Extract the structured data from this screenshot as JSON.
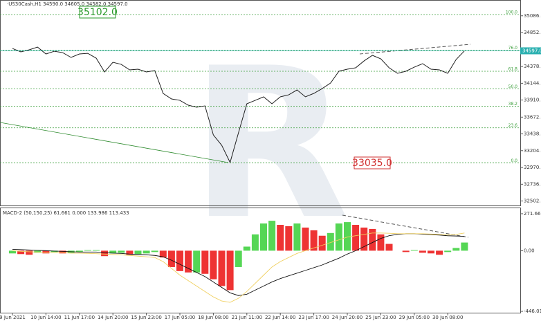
{
  "chart_data": [
    {
      "type": "line",
      "title": "·US30Cash,H1  34590.0 34605.0 34582.0 34597.0",
      "color": "#1f1f1f",
      "values": [
        34630,
        34582,
        34611,
        34649,
        34553,
        34591,
        34572,
        34505,
        34553,
        34562,
        34495,
        34302,
        34437,
        34408,
        34331,
        34341,
        34302,
        34321,
        34003,
        33926,
        33906,
        33839,
        33810,
        33829,
        33424,
        33279,
        33040,
        33453,
        33858,
        33906,
        33955,
        33858,
        33955,
        33983,
        34051,
        33955,
        34003,
        34070,
        34148,
        34312,
        34341,
        34360,
        34456,
        34534,
        34485,
        34360,
        34283,
        34312,
        34369,
        34418,
        34341,
        34331,
        34283,
        34476,
        34597
      ],
      "ylim": [
        32430,
        35306
      ],
      "yticks": [
        {
          "value": 35086,
          "label": "35086.0"
        },
        {
          "value": 34852,
          "label": "34852.0"
        },
        {
          "value": 34378.6,
          "label": "34378.6"
        },
        {
          "value": 34144.5,
          "label": "34144.5"
        },
        {
          "value": 33910.5,
          "label": "33910.5"
        },
        {
          "value": 33672,
          "label": "33672.0"
        },
        {
          "value": 33438,
          "label": "33438.0"
        },
        {
          "value": 33204,
          "label": "33204.0"
        },
        {
          "value": 32970,
          "label": "32970.0"
        },
        {
          "value": 32736,
          "label": "32736.0"
        },
        {
          "value": 32502,
          "label": "32502.0"
        }
      ],
      "last_price": {
        "value": 34597,
        "label": "34597.0"
      },
      "fib_color": "#3a9e3a",
      "fib_levels": [
        {
          "level": "100.0",
          "price": 35102
        },
        {
          "level": "76.0",
          "price": 34606
        },
        {
          "level": "61.8",
          "price": 34312
        },
        {
          "level": "50.0",
          "price": 34068
        },
        {
          "level": "38.2",
          "price": 33825
        },
        {
          "level": "23.6",
          "price": 33523
        },
        {
          "level": "0.0",
          "price": 33035
        }
      ],
      "annotations": [
        {
          "text": "35102.0",
          "color": "#2a9a2a"
        },
        {
          "text": "33035.0",
          "color": "#d03030"
        }
      ]
    },
    {
      "type": "bar",
      "title": "MACD-2 (50,150,25) 61.661 0.000 133.986 113.433",
      "up_color": "#55d655",
      "down_color": "#ee3333",
      "categories": [
        "9 Jun 2021",
        null,
        null,
        null,
        "10 Jun 14:00",
        null,
        null,
        null,
        "11 Jun 17:00",
        null,
        null,
        null,
        "14 Jun 20:00",
        null,
        null,
        null,
        "15 Jun 23:00",
        null,
        null,
        null,
        "17 Jun 05:00",
        null,
        null,
        null,
        "18 Jun 08:00",
        null,
        null,
        null,
        "21 Jun 11:00",
        null,
        null,
        null,
        "22 Jun 14:00",
        null,
        null,
        null,
        "23 Jun 17:00",
        null,
        null,
        null,
        "24 Jun 20:00",
        null,
        null,
        null,
        "25 Jun 23:00",
        null,
        null,
        null,
        "29 Jun 05:00",
        null,
        null,
        null,
        "30 Jun 08:00",
        null,
        null
      ],
      "values": [
        -20,
        -25,
        -30,
        -15,
        -20,
        -10,
        -20,
        -15,
        -10,
        5,
        5,
        -40,
        -20,
        -15,
        -30,
        -25,
        -20,
        -10,
        -50,
        -120,
        -150,
        -160,
        -160,
        -170,
        -210,
        -260,
        -290,
        -120,
        30,
        120,
        200,
        220,
        190,
        180,
        200,
        170,
        150,
        110,
        130,
        200,
        210,
        190,
        170,
        160,
        120,
        50,
        0,
        -10,
        5,
        -15,
        -20,
        -30,
        -10,
        20,
        60
      ],
      "series": [
        {
          "color": "#111111",
          "values": [
            10,
            8,
            5,
            3,
            0,
            -3,
            -5,
            -8,
            -10,
            -10,
            -10,
            -15,
            -18,
            -20,
            -25,
            -28,
            -30,
            -35,
            -45,
            -70,
            -100,
            -130,
            -160,
            -190,
            -230,
            -270,
            -310,
            -330,
            -320,
            -290,
            -260,
            -230,
            -205,
            -185,
            -165,
            -145,
            -125,
            -105,
            -80,
            -55,
            -25,
            0,
            30,
            60,
            90,
            110,
            120,
            125,
            125,
            122,
            118,
            115,
            110,
            108,
            105
          ]
        },
        {
          "color": "#f0d060",
          "values": [
            0,
            -5,
            -8,
            -10,
            -12,
            -15,
            -15,
            -18,
            -18,
            -20,
            -22,
            -25,
            -28,
            -30,
            -35,
            -40,
            -45,
            -50,
            -80,
            -130,
            -180,
            -220,
            -260,
            -300,
            -340,
            -370,
            -380,
            -350,
            -300,
            -240,
            -180,
            -120,
            -80,
            -50,
            -20,
            0,
            20,
            40,
            60,
            80,
            100,
            110,
            120,
            130,
            130,
            128,
            125,
            125,
            125,
            125,
            122,
            120,
            115,
            120,
            130
          ]
        }
      ],
      "ylim": [
        -456,
        302
      ],
      "yticks": [
        271.667,
        {
          "value": 0,
          "label": "0.00"
        },
        -446.016
      ]
    }
  ]
}
